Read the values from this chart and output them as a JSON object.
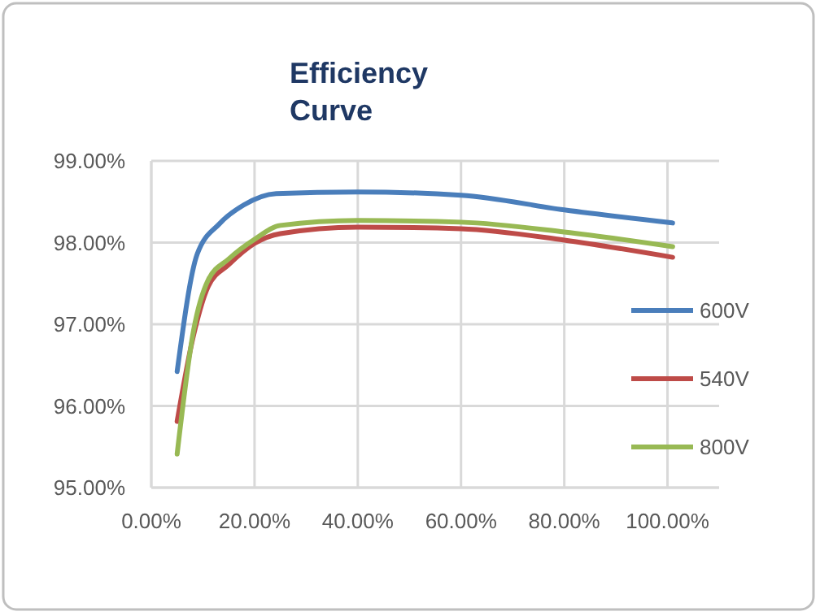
{
  "chart_data": {
    "type": "line",
    "title": "Efficiency Curve",
    "xlim": [
      0,
      110
    ],
    "xticks": [
      {
        "value": 0,
        "label": "0.00%"
      },
      {
        "value": 20,
        "label": "20.00%"
      },
      {
        "value": 40,
        "label": "40.00%"
      },
      {
        "value": 60,
        "label": "60.00%"
      },
      {
        "value": 80,
        "label": "80.00%"
      },
      {
        "value": 100,
        "label": "100.00%"
      }
    ],
    "ylim": [
      95,
      99
    ],
    "yticks": [
      {
        "value": 95,
        "label": "95.00%"
      },
      {
        "value": 96,
        "label": "96.00%"
      },
      {
        "value": 97,
        "label": "97.00%"
      },
      {
        "value": 98,
        "label": "98.00%"
      },
      {
        "value": 99,
        "label": "99.00%"
      }
    ],
    "grid": true,
    "legend": "right",
    "marker": "none",
    "line_style": "solid",
    "series": [
      {
        "name": "600V",
        "color": "#4a7ebb",
        "x": [
          5,
          8.9,
          13.2,
          17.9,
          24.2,
          40,
          60,
          80,
          101
        ],
        "values": [
          96.42,
          97.86,
          98.23,
          98.46,
          98.6,
          98.62,
          98.58,
          98.4,
          98.24
        ]
      },
      {
        "name": "540V",
        "color": "#be4b48",
        "x": [
          5,
          8.2,
          11,
          15,
          20,
          25,
          40,
          60,
          80,
          101
        ],
        "values": [
          95.81,
          96.87,
          97.46,
          97.73,
          97.99,
          98.11,
          98.19,
          98.17,
          98.03,
          97.82
        ]
      },
      {
        "name": "800V",
        "color": "#98b954",
        "x": [
          5,
          8.2,
          11,
          15,
          20,
          25,
          40,
          60,
          80,
          101
        ],
        "values": [
          95.41,
          96.93,
          97.54,
          97.8,
          98.04,
          98.21,
          98.27,
          98.25,
          98.13,
          97.95
        ]
      }
    ]
  }
}
